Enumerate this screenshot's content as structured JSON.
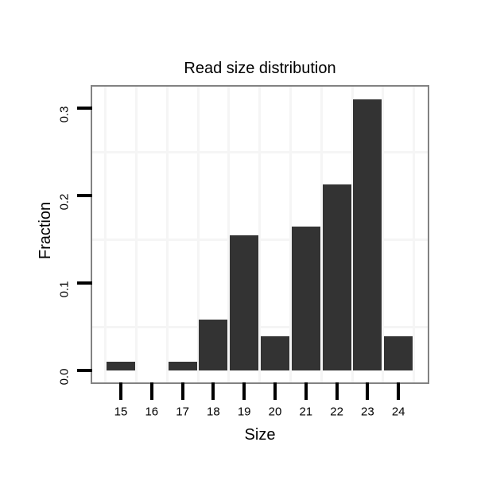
{
  "chart_data": {
    "type": "bar",
    "title": "Read size distribution",
    "xlabel": "Size",
    "ylabel": "Fraction",
    "categories": [
      "15",
      "16",
      "17",
      "18",
      "19",
      "20",
      "21",
      "22",
      "23",
      "24"
    ],
    "values": [
      0.01,
      0,
      0.01,
      0.058,
      0.155,
      0.039,
      0.165,
      0.213,
      0.31,
      0.039
    ],
    "y_tick_labels": [
      "0.0",
      "0.1",
      "0.2",
      "0.3"
    ],
    "y_tick_values": [
      0.0,
      0.1,
      0.2,
      0.3
    ],
    "ylim": [
      -0.013,
      0.325
    ],
    "grid": {
      "y_minor_values": [
        0.05,
        0.15,
        0.25
      ],
      "x_at_category_boundaries": true
    },
    "legend": "none",
    "colors": {
      "bar": "#333333",
      "panel_border": "#828282",
      "gridline": "#f5f5f5",
      "tick": "#000000",
      "text": "#000000",
      "background": "#ffffff"
    }
  }
}
